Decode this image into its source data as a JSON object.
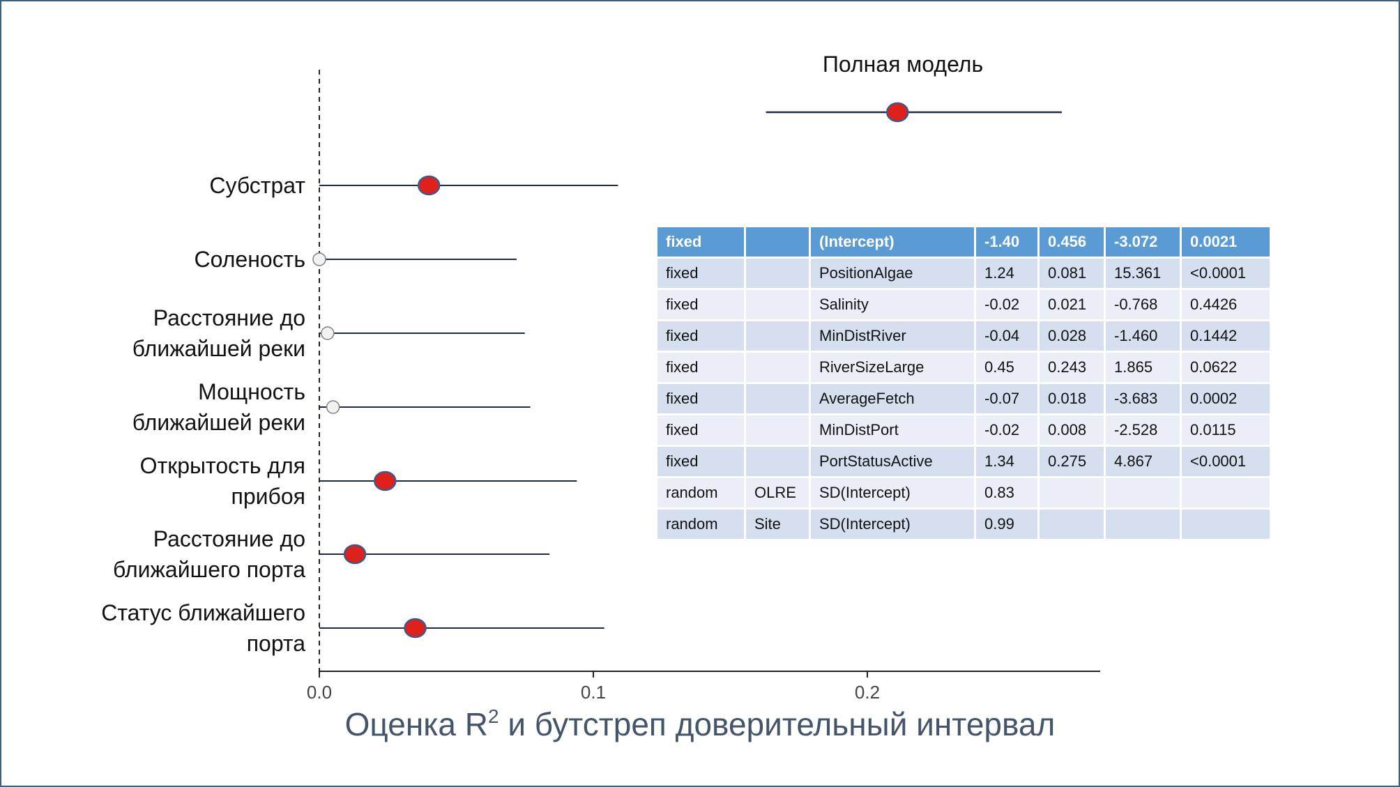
{
  "chart_data": {
    "type": "forest",
    "xlabel_main": "Оценка R",
    "xlabel_sup": "2",
    "xlabel_rest": " и бутстреп доверительный интервал",
    "xticks": [
      0.0,
      0.1,
      0.2
    ],
    "xtick_labels": [
      "0.0",
      "0.1",
      "0.2"
    ],
    "xlim": [
      -0.01,
      0.285
    ],
    "reference_line_x": 0.0,
    "full_model": {
      "title": "Полная модель",
      "estimate": 0.211,
      "ci": [
        0.163,
        0.271
      ]
    },
    "predictors": [
      {
        "label": "Субстрат",
        "estimate": 0.04,
        "ci": [
          0.0,
          0.109
        ],
        "significant": true
      },
      {
        "label": "Соленость",
        "estimate": 0.0,
        "ci": [
          0.0,
          0.072
        ],
        "significant": false
      },
      {
        "label": "Расстояние до\nближайшей реки",
        "estimate": 0.003,
        "ci": [
          0.0,
          0.075
        ],
        "significant": false
      },
      {
        "label": "Мощность\nближайшей реки",
        "estimate": 0.005,
        "ci": [
          0.0,
          0.077
        ],
        "significant": false
      },
      {
        "label": "Открытость для\nприбоя",
        "estimate": 0.024,
        "ci": [
          0.0,
          0.094
        ],
        "significant": true
      },
      {
        "label": "Расстояние до\nближайшего порта",
        "estimate": 0.013,
        "ci": [
          0.0,
          0.084
        ],
        "significant": true
      },
      {
        "label": "Статус ближайшего\nпорта",
        "estimate": 0.035,
        "ci": [
          0.0,
          0.104
        ],
        "significant": true
      }
    ],
    "colors": {
      "significant_fill": "#e0201b",
      "significant_stroke": "#3b5a8a",
      "nonsignificant_fill": "#f2f2f2",
      "nonsignificant_stroke": "#7f7f7f",
      "line": "#1f2a44",
      "axis": "#222222"
    }
  },
  "table": {
    "header": [
      "fixed",
      "",
      "(Intercept)",
      "-1.40",
      "0.456",
      "-3.072",
      "0.0021"
    ],
    "rows": [
      [
        "fixed",
        "",
        "PositionAlgae",
        "1.24",
        "0.081",
        "15.361",
        "<0.0001"
      ],
      [
        "fixed",
        "",
        "Salinity",
        "-0.02",
        "0.021",
        "-0.768",
        "0.4426"
      ],
      [
        "fixed",
        "",
        "MinDistRiver",
        "-0.04",
        "0.028",
        "-1.460",
        "0.1442"
      ],
      [
        "fixed",
        "",
        "RiverSizeLarge",
        "0.45",
        "0.243",
        "1.865",
        "0.0622"
      ],
      [
        "fixed",
        "",
        "AverageFetch",
        "-0.07",
        "0.018",
        "-3.683",
        "0.0002"
      ],
      [
        "fixed",
        "",
        "MinDistPort",
        "-0.02",
        "0.008",
        "-2.528",
        "0.0115"
      ],
      [
        "fixed",
        "",
        "PortStatusActive",
        "1.34",
        "0.275",
        "4.867",
        "<0.0001"
      ],
      [
        "random",
        "OLRE",
        "SD(Intercept)",
        "0.83",
        "",
        "",
        ""
      ],
      [
        "random",
        "Site",
        "SD(Intercept)",
        "0.99",
        "",
        "",
        ""
      ]
    ],
    "colors": {
      "header": "#5b9bd5",
      "row_odd": "#d5dfef",
      "row_even": "#eaeff7"
    }
  }
}
